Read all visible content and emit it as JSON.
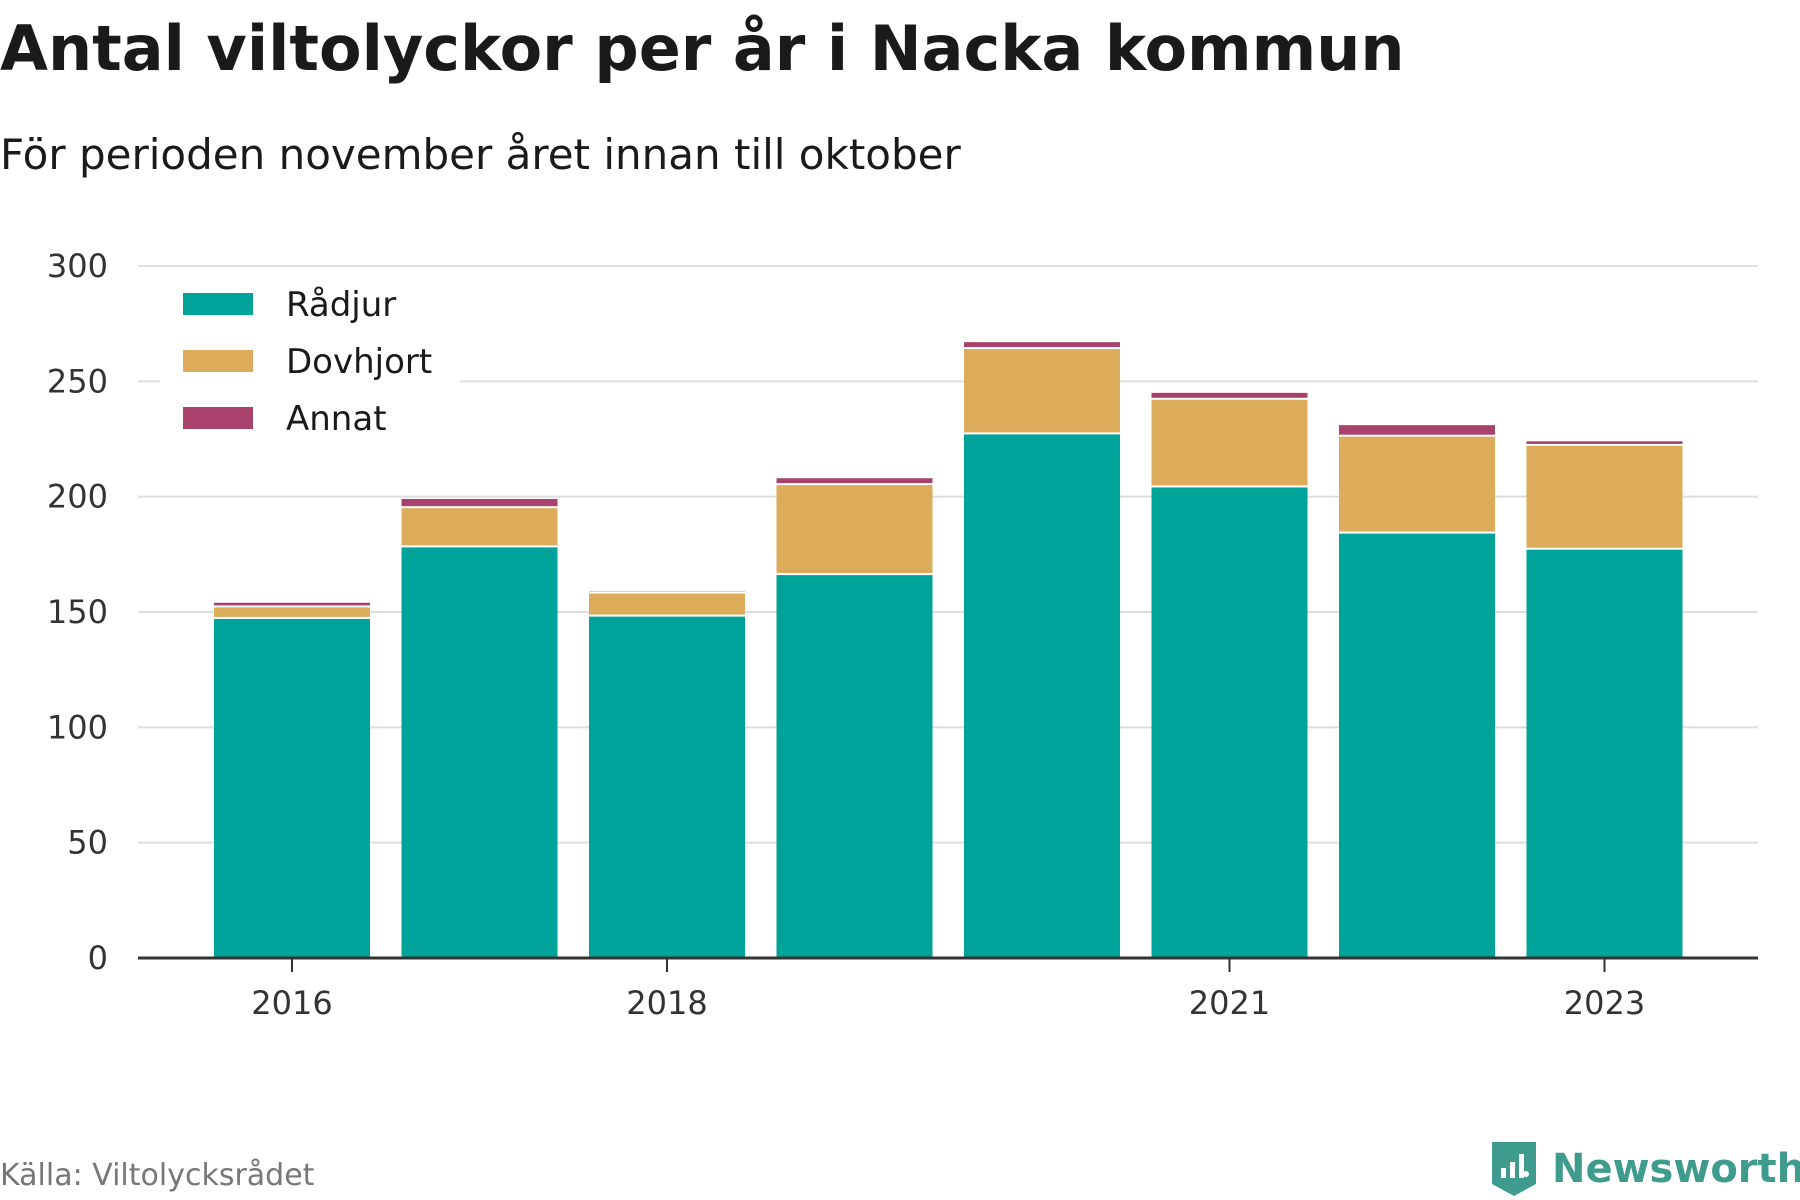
{
  "title": "Antal viltolyckor per år i Nacka kommun",
  "subtitle": "För perioden november året innan till oktober",
  "source": "Källa: Viltolycksrådet",
  "brand": {
    "name": "Newsworthy",
    "icon": "newsworthy-logo-icon",
    "color": "#3e9b8e"
  },
  "chart_data": {
    "type": "bar",
    "stacked": true,
    "x": [
      2016,
      2017,
      2018,
      2019,
      2020,
      2021,
      2022,
      2023
    ],
    "x_tick_labels": [
      "2016",
      "2018",
      "2021",
      "2023"
    ],
    "x_tick_values": [
      2016,
      2018,
      2021,
      2023
    ],
    "y_ticks": [
      "0",
      "50",
      "100",
      "150",
      "200",
      "250",
      "300"
    ],
    "ylim": [
      0,
      300
    ],
    "grid": true,
    "legend_position": "top-left",
    "series": [
      {
        "name": "Rådjur",
        "color": "#00a39a",
        "values": [
          147,
          178,
          148,
          166,
          227,
          204,
          184,
          177
        ]
      },
      {
        "name": "Dovhjort",
        "color": "#dcac5a",
        "values": [
          5,
          17,
          10,
          39,
          37,
          38,
          42,
          45
        ]
      },
      {
        "name": "Annat",
        "color": "#a8426c",
        "values": [
          2,
          4,
          1,
          3,
          3,
          3,
          5,
          2
        ]
      }
    ]
  }
}
